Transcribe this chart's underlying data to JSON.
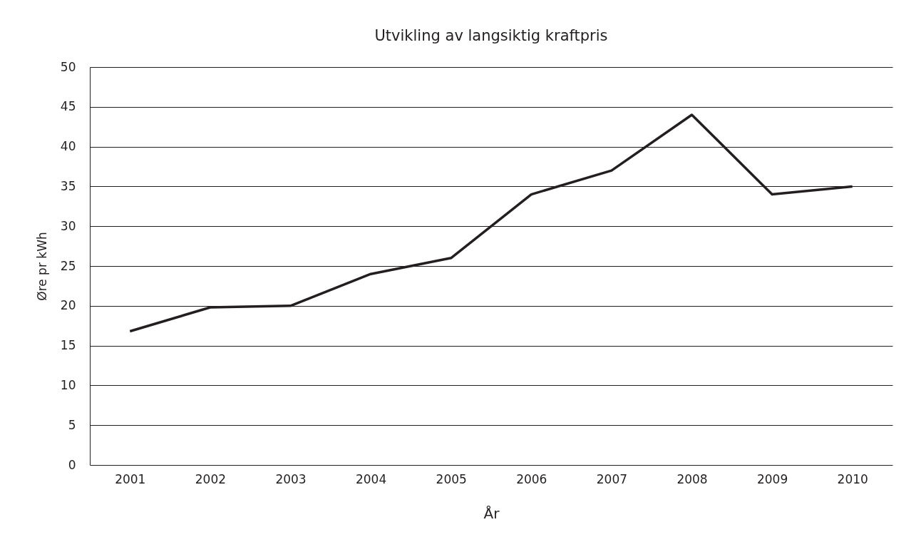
{
  "chart_data": {
    "type": "line",
    "title": "Utvikling av langsiktig kraftpris",
    "xlabel": "År",
    "ylabel": "Øre pr kWh",
    "categories": [
      "2001",
      "2002",
      "2003",
      "2004",
      "2005",
      "2006",
      "2007",
      "2008",
      "2009",
      "2010"
    ],
    "series": [
      {
        "color": "#231f20",
        "values": [
          16.8,
          19.8,
          20,
          24,
          26,
          34,
          37,
          44,
          34,
          35
        ]
      }
    ],
    "ylim": [
      0,
      50
    ],
    "yticks": [
      0,
      5,
      10,
      15,
      20,
      25,
      30,
      35,
      40,
      45,
      50
    ],
    "grid": "y",
    "marker": "none",
    "line_style": "solid"
  }
}
